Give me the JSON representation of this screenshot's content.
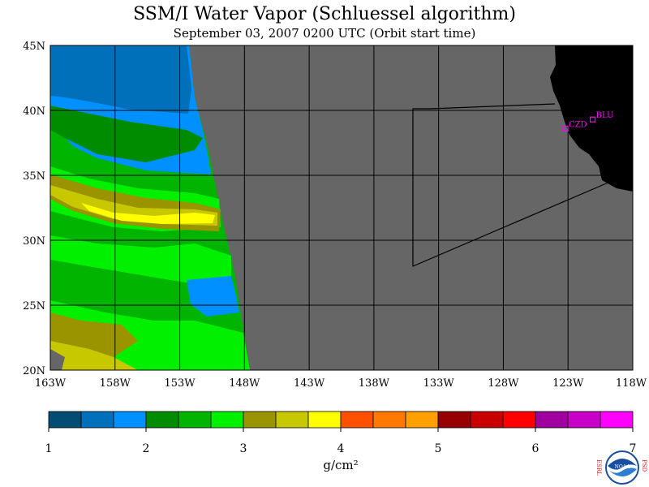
{
  "title": "SSM/I Water Vapor (Schluessel algorithm)",
  "subtitle": "September 03, 2007  0200 UTC  (Orbit start time)",
  "map": {
    "lat_labels": [
      "45N",
      "40N",
      "35N",
      "30N",
      "25N",
      "20N"
    ],
    "lon_labels": [
      "163W",
      "158W",
      "153W",
      "148W",
      "143W",
      "138W",
      "133W",
      "128W",
      "123W",
      "118W"
    ],
    "lat_range": [
      20,
      45
    ],
    "lon_range": [
      -163,
      -118
    ],
    "no_data_color": "#666666",
    "land_color": "#000000",
    "stations": [
      {
        "code": "CZD",
        "lat": 38.6,
        "lon": -123.2
      },
      {
        "code": "BLU",
        "lat": 39.3,
        "lon": -121.1
      }
    ],
    "station_color": "#ff00ff"
  },
  "colorbar": {
    "ticks": [
      "1",
      "2",
      "3",
      "4",
      "5",
      "6",
      "7"
    ],
    "range": [
      1,
      7
    ],
    "units": "g/cm²",
    "colors": [
      "#004c73",
      "#0070bb",
      "#0090ff",
      "#008c00",
      "#00b400",
      "#00f000",
      "#9a9400",
      "#c8c800",
      "#ffff00",
      "#ff5000",
      "#ff7800",
      "#ffa000",
      "#960000",
      "#c80000",
      "#ff0000",
      "#a000a0",
      "#c800c8",
      "#ff00ff"
    ]
  },
  "logo": {
    "left": "ESRL",
    "right": "PSD",
    "center": "NOAA"
  }
}
